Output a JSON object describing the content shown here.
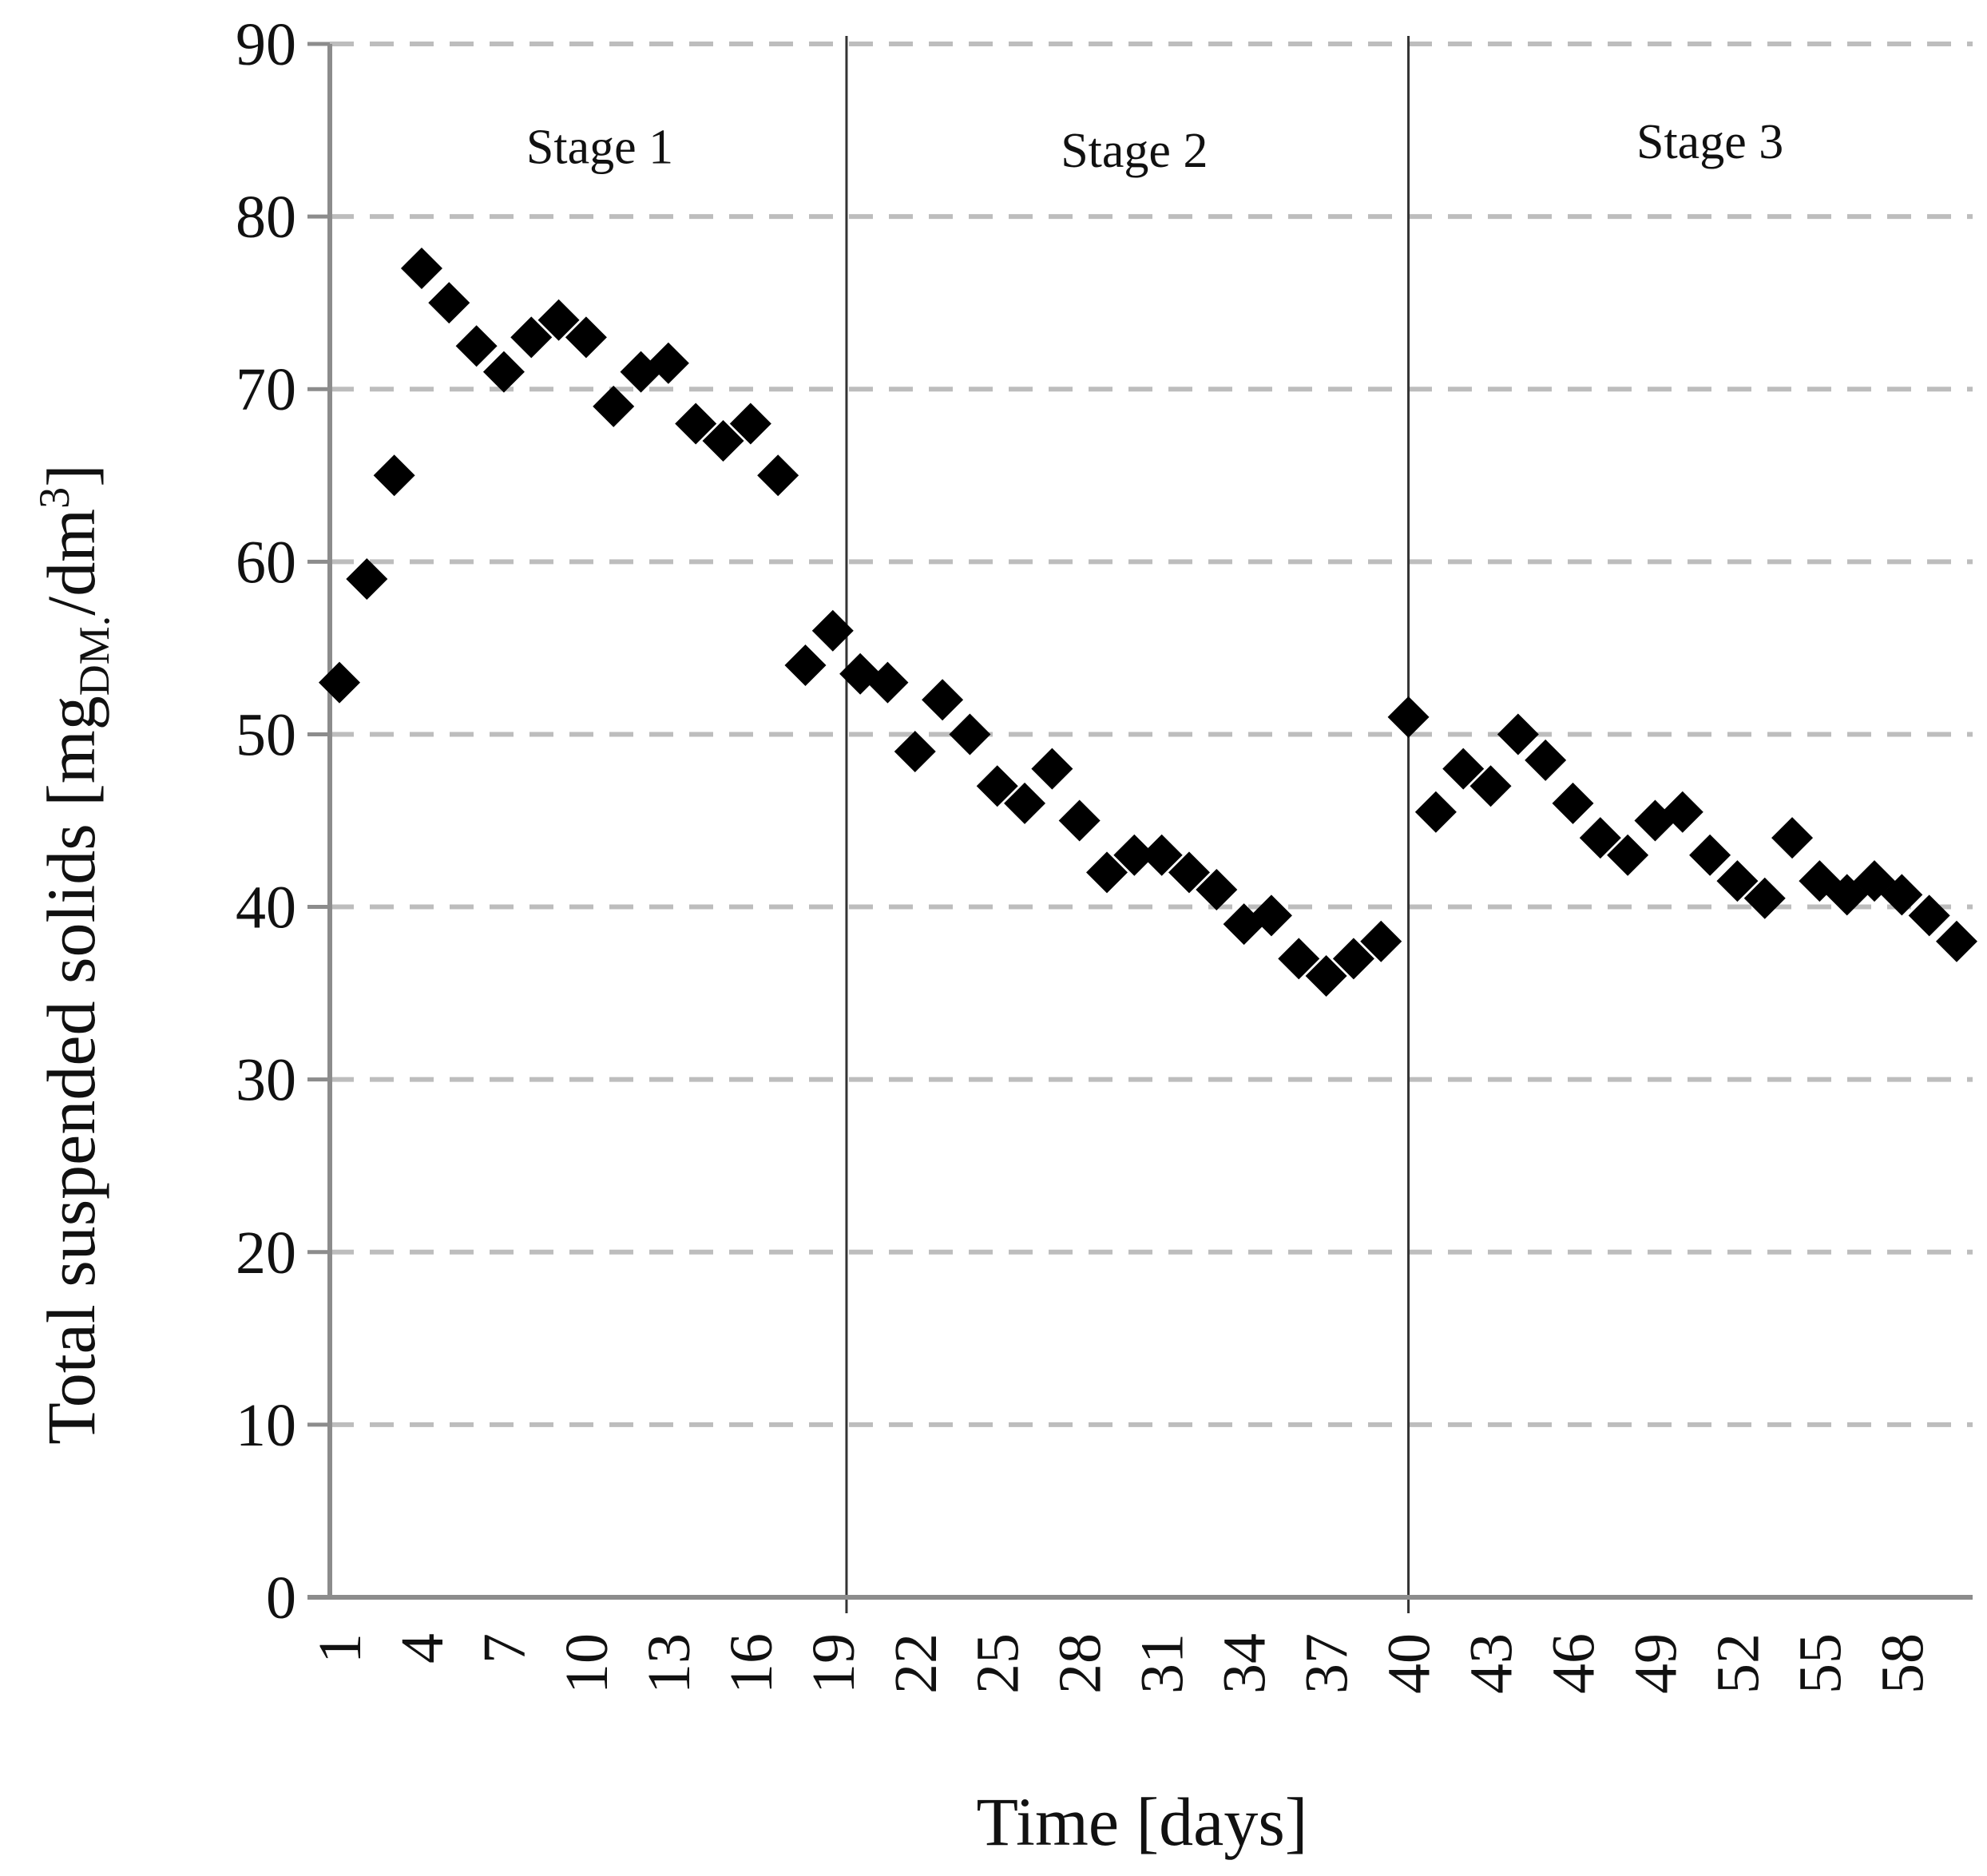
{
  "chart_data": {
    "type": "scatter",
    "title": "",
    "xlabel": "Time [days]",
    "ylabel": {
      "main": "Total suspended solids [mg",
      "sub": "DM.",
      "mid": "/dm",
      "sup": "3",
      "end": "]"
    },
    "ylim": [
      0,
      90
    ],
    "yticks": [
      "0",
      "10",
      "20",
      "30",
      "40",
      "50",
      "60",
      "70",
      "80",
      "90"
    ],
    "xlim": [
      1,
      60
    ],
    "xticks": [
      "1",
      "4",
      "7",
      "10",
      "13",
      "16",
      "19",
      "22",
      "25",
      "28",
      "31",
      "34",
      "37",
      "40",
      "43",
      "46",
      "49",
      "52",
      "55",
      "58"
    ],
    "grid": "horizontal dashed",
    "marker": "diamond",
    "marker_color": "#000000",
    "stage_boundaries": [
      19.5,
      40.0
    ],
    "stages": [
      {
        "label": "Stage 1",
        "x_center": 10.5,
        "y": 84
      },
      {
        "label": "Stage 2",
        "x_center": 30.0,
        "y": 83.8
      },
      {
        "label": "Stage 3",
        "x_center": 51.0,
        "y": 84.3
      }
    ],
    "x": [
      1,
      2,
      3,
      4,
      5,
      6,
      7,
      8,
      9,
      10,
      11,
      12,
      13,
      14,
      15,
      16,
      17,
      18,
      19,
      20,
      21,
      22,
      23,
      24,
      25,
      26,
      27,
      28,
      29,
      30,
      31,
      32,
      33,
      34,
      35,
      36,
      37,
      38,
      39,
      40,
      41,
      42,
      43,
      44,
      45,
      46,
      47,
      48,
      49,
      50,
      51,
      52,
      53,
      54,
      55,
      56,
      57,
      58,
      59,
      60
    ],
    "y": [
      53,
      59,
      65,
      77,
      75,
      72.5,
      71,
      73,
      74,
      73,
      69,
      71,
      71.5,
      68,
      67,
      68,
      65,
      54,
      56,
      53.5,
      53,
      49,
      52,
      50,
      47,
      46,
      48,
      45,
      42,
      43,
      43,
      42,
      41,
      39,
      39.5,
      37,
      36,
      37,
      38,
      51,
      45.5,
      48,
      47,
      50,
      48.5,
      46,
      44,
      43,
      45,
      45.5,
      43,
      41.5,
      40.5,
      44,
      41.5,
      40.7,
      41.5,
      40.7,
      39.5,
      38
    ]
  }
}
